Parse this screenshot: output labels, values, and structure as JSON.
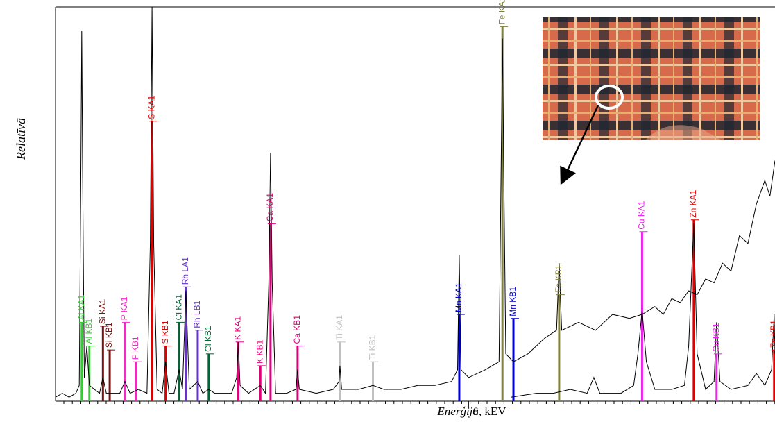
{
  "chart_data": {
    "type": "line",
    "y_label": "Relatīvā",
    "x_label_italic": "Enerģija",
    "x_label_rest": ", kEV",
    "xlim": [
      1.12,
      9.62
    ],
    "ylim": [
      0,
      100
    ],
    "xticks": [
      6
    ],
    "series": [
      {
        "color": "#000000",
        "x": [
          1.12,
          1.2,
          1.28,
          1.36,
          1.4,
          1.42,
          1.43,
          1.44,
          1.46,
          1.49,
          1.52,
          1.58,
          1.64,
          1.68,
          1.72,
          1.8,
          1.88,
          1.94,
          2.0,
          2.1,
          2.2,
          2.24,
          2.26,
          2.28,
          2.32,
          2.38,
          2.42,
          2.46,
          2.52,
          2.58,
          2.62,
          2.66,
          2.7,
          2.8,
          2.86,
          2.93,
          3.0,
          3.1,
          3.2,
          3.26,
          3.28,
          3.3,
          3.4,
          3.54,
          3.6,
          3.64,
          3.66,
          3.68,
          3.72,
          3.85,
          3.96,
          3.98,
          4.0,
          4.2,
          4.4,
          4.47,
          4.48,
          4.5,
          4.7,
          4.87,
          5.0,
          5.2,
          5.4,
          5.6,
          5.8,
          5.87,
          5.89,
          5.91,
          6.0,
          6.2,
          6.36,
          6.38,
          6.4,
          6.42,
          6.44,
          6.53,
          6.7,
          6.9,
          7.04,
          7.07,
          7.1,
          7.3,
          7.5,
          7.7,
          7.9,
          8.05,
          8.2,
          8.3,
          8.4,
          8.5,
          8.6,
          8.7,
          8.8,
          8.9,
          9.0,
          9.1,
          9.2,
          9.3,
          9.4,
          9.5,
          9.56,
          9.62
        ],
        "values": [
          1,
          2,
          1,
          2,
          4,
          60,
          94,
          60,
          6,
          14,
          4,
          3,
          2,
          6,
          2,
          2,
          2,
          5,
          2,
          3,
          2,
          40,
          100,
          40,
          3,
          2,
          10,
          2,
          2,
          8,
          3,
          28,
          3,
          5,
          2,
          3,
          2,
          2,
          2,
          6,
          15,
          4,
          2,
          4,
          2,
          30,
          63,
          30,
          2,
          2,
          3,
          8,
          3,
          2,
          3,
          5,
          9,
          3,
          3,
          4,
          3,
          3,
          4,
          4,
          5,
          8,
          37,
          8,
          6,
          8,
          10,
          50,
          92,
          50,
          12,
          10,
          12,
          16,
          18,
          35,
          18,
          20,
          18,
          22,
          21,
          22,
          24,
          22,
          26,
          25,
          28,
          27,
          31,
          30,
          35,
          33,
          42,
          40,
          50,
          56,
          52,
          61
        ]
      },
      {
        "color": "#000000",
        "x": [
          6.5,
          6.8,
          7.0,
          7.2,
          7.4,
          7.48,
          7.55,
          7.8,
          7.95,
          8.0,
          8.05,
          8.1,
          8.2,
          8.4,
          8.55,
          8.6,
          8.66,
          8.7,
          8.8,
          8.9,
          8.93,
          8.97,
          9.1,
          9.3,
          9.4,
          9.5,
          9.58,
          9.61,
          9.62
        ],
        "values": [
          1,
          2,
          2,
          3,
          2,
          6,
          2,
          2,
          4,
          12,
          23,
          10,
          3,
          3,
          4,
          14,
          45,
          12,
          3,
          5,
          20,
          5,
          3,
          4,
          7,
          4,
          8,
          22,
          12
        ]
      }
    ],
    "lines": [
      {
        "label": "Al KA1",
        "energy": 1.43,
        "height": 20,
        "color": "#33cc33"
      },
      {
        "label": "Al KB1",
        "energy": 1.52,
        "height": 14,
        "color": "#33cc33"
      },
      {
        "label": "Si KA1",
        "energy": 1.68,
        "height": 19,
        "color": "#7a1010"
      },
      {
        "label": "Si KB1",
        "energy": 1.76,
        "height": 13,
        "color": "#7a1010"
      },
      {
        "label": "P KA1",
        "energy": 1.94,
        "height": 20,
        "color": "#ff22cc"
      },
      {
        "label": "P KB1",
        "energy": 2.07,
        "height": 10,
        "color": "#ff22cc"
      },
      {
        "label": "S KA1",
        "energy": 2.26,
        "height": 71,
        "color": "#e00000"
      },
      {
        "label": "S KB1",
        "energy": 2.42,
        "height": 14,
        "color": "#e00000"
      },
      {
        "label": "Cl KA1",
        "energy": 2.58,
        "height": 20,
        "color": "#006633"
      },
      {
        "label": "Rh LA1",
        "energy": 2.66,
        "height": 29,
        "color": "#6633cc"
      },
      {
        "label": "Rh LB1",
        "energy": 2.8,
        "height": 18,
        "color": "#6633cc"
      },
      {
        "label": "Cl KB1",
        "energy": 2.93,
        "height": 12,
        "color": "#006633"
      },
      {
        "label": "K KA1",
        "energy": 3.28,
        "height": 15,
        "color": "#e0007a"
      },
      {
        "label": "K KB1",
        "energy": 3.54,
        "height": 9,
        "color": "#e0007a"
      },
      {
        "label": "Ca KA1",
        "energy": 3.66,
        "height": 45,
        "color": "#e0007a"
      },
      {
        "label": "Ca KB1",
        "energy": 3.98,
        "height": 14,
        "color": "#e0007a"
      },
      {
        "label": "Ti KA1",
        "energy": 4.48,
        "height": 15,
        "color": "#c0c0c0"
      },
      {
        "label": "Ti KB1",
        "energy": 4.87,
        "height": 10,
        "color": "#c0c0c0"
      },
      {
        "label": "Mn KA1",
        "energy": 5.89,
        "height": 22,
        "color": "#0000cc"
      },
      {
        "label": "Mn KB1",
        "energy": 6.53,
        "height": 21,
        "color": "#0000cc"
      },
      {
        "label": "Fe KA1",
        "energy": 6.4,
        "height": 95,
        "color": "#808040"
      },
      {
        "label": "Fe KB1",
        "energy": 7.07,
        "height": 27,
        "color": "#808040"
      },
      {
        "label": "Cu KA1",
        "energy": 8.05,
        "height": 43,
        "color": "#ee22ee"
      },
      {
        "label": "Cu KB1",
        "energy": 8.93,
        "height": 12,
        "color": "#ee22ee"
      },
      {
        "label": "Zn KA1",
        "energy": 8.66,
        "height": 46,
        "color": "#e00000"
      },
      {
        "label": "Zn KB1",
        "energy": 9.61,
        "height": 13,
        "color": "#e00000"
      }
    ]
  }
}
